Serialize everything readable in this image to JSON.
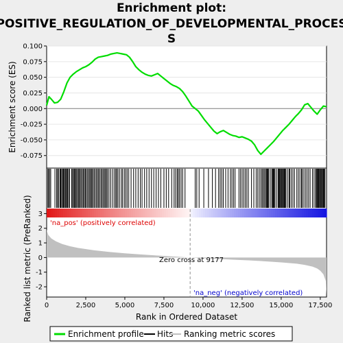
{
  "title_lines": [
    "Enrichment plot:",
    "POSITIVE_REGULATION_OF_DEVELOPMENTAL_PROCES",
    "S"
  ],
  "legend": {
    "enrichment": "Enrichment profile",
    "hits": "Hits",
    "ranking": "Ranking metric scores"
  },
  "colors": {
    "enrichment_line": "#00dd00",
    "hits": "#000000",
    "ranking_fill": "#c0c0c0",
    "positive_label": "#dd0000",
    "negative_label": "#0000cc",
    "zero_line": "#808080"
  },
  "chart_data": [
    {
      "type": "line",
      "panel": "enrichment",
      "ylabel": "Enrichment score (ES)",
      "xlim": [
        0,
        17900
      ],
      "ylim": [
        -0.095,
        0.1
      ],
      "yticks": [
        0.1,
        0.075,
        0.05,
        0.025,
        0.0,
        -0.025,
        -0.05,
        -0.075
      ],
      "ytick_labels": [
        "0.100",
        "0.075",
        "0.050",
        "0.025",
        "0.000",
        "-0.025",
        "-0.050",
        "-0.075"
      ],
      "series": [
        {
          "x": [
            0,
            150,
            300,
            500,
            700,
            900,
            1100,
            1300,
            1500,
            1700,
            1900,
            2100,
            2300,
            2500,
            2700,
            2900,
            3100,
            3300,
            3500,
            3700,
            3900,
            4100,
            4300,
            4500,
            4700,
            4900,
            5100,
            5300,
            5500,
            5700,
            5900,
            6100,
            6300,
            6500,
            6700,
            6900,
            7100,
            7300,
            7500,
            7700,
            7900,
            8100,
            8300,
            8500,
            8700,
            8900,
            9100,
            9300,
            9500,
            9700,
            9900,
            10100,
            10300,
            10500,
            10700,
            10900,
            11100,
            11300,
            11500,
            11700,
            11900,
            12100,
            12300,
            12500,
            12700,
            12900,
            13100,
            13300,
            13500,
            13700,
            13900,
            14100,
            14300,
            14500,
            14700,
            14900,
            15100,
            15300,
            15500,
            15700,
            15900,
            16100,
            16300,
            16500,
            16700,
            16900,
            17100,
            17300,
            17500,
            17700,
            17900
          ],
          "y": [
            0.005,
            0.019,
            0.015,
            0.009,
            0.01,
            0.015,
            0.027,
            0.041,
            0.05,
            0.055,
            0.059,
            0.062,
            0.065,
            0.067,
            0.07,
            0.074,
            0.079,
            0.082,
            0.083,
            0.084,
            0.085,
            0.087,
            0.088,
            0.089,
            0.088,
            0.087,
            0.086,
            0.082,
            0.075,
            0.067,
            0.062,
            0.058,
            0.055,
            0.053,
            0.052,
            0.054,
            0.056,
            0.052,
            0.048,
            0.044,
            0.04,
            0.037,
            0.035,
            0.032,
            0.027,
            0.02,
            0.012,
            0.004,
            0.0,
            -0.004,
            -0.011,
            -0.018,
            -0.024,
            -0.03,
            -0.036,
            -0.04,
            -0.037,
            -0.035,
            -0.038,
            -0.041,
            -0.043,
            -0.044,
            -0.046,
            -0.045,
            -0.047,
            -0.049,
            -0.052,
            -0.058,
            -0.067,
            -0.073,
            -0.068,
            -0.063,
            -0.058,
            -0.053,
            -0.047,
            -0.041,
            -0.035,
            -0.03,
            -0.025,
            -0.019,
            -0.013,
            -0.008,
            -0.002,
            0.006,
            0.008,
            0.002,
            -0.004,
            -0.009,
            -0.002,
            0.004,
            0.003
          ]
        }
      ]
    },
    {
      "type": "bar",
      "panel": "ranked_metric",
      "xlabel": "Rank in Ordered Dataset",
      "ylabel": "Ranked list metric (PreRanked)",
      "xlim": [
        0,
        17900
      ],
      "ylim": [
        -2.7,
        3.3
      ],
      "xticks": [
        0,
        2500,
        5000,
        7500,
        10000,
        12500,
        15000,
        17500
      ],
      "xtick_labels": [
        "0",
        "2,500",
        "5,000",
        "7,500",
        "10,000",
        "12,500",
        "15,000",
        "17,500"
      ],
      "yticks": [
        3,
        2,
        1,
        0,
        -1,
        -2
      ],
      "ytick_labels": [
        "3",
        "2",
        "1",
        "0",
        "-1",
        "-2"
      ],
      "x": [
        0,
        100,
        300,
        600,
        1000,
        1500,
        2000,
        3000,
        4000,
        5000,
        6000,
        7000,
        8000,
        9177,
        10000,
        11000,
        12000,
        13000,
        14000,
        15000,
        16000,
        16500,
        17000,
        17300,
        17500,
        17700,
        17850,
        17900
      ],
      "y": [
        1.9,
        1.55,
        1.3,
        1.1,
        0.92,
        0.77,
        0.66,
        0.5,
        0.38,
        0.29,
        0.21,
        0.14,
        0.08,
        0.0,
        -0.05,
        -0.1,
        -0.15,
        -0.2,
        -0.26,
        -0.33,
        -0.42,
        -0.5,
        -0.62,
        -0.75,
        -0.9,
        -1.15,
        -1.6,
        -2.6
      ],
      "zero_cross_rank": 9177,
      "annotations": {
        "zero_cross": "Zero cross at 9177",
        "positive": "'na_pos' (positively correlated)",
        "negative": "'na_neg' (negatively correlated)"
      }
    }
  ],
  "hits_ranks": [
    80,
    120,
    190,
    260,
    530,
    640,
    700,
    760,
    850,
    900,
    960,
    1020,
    1070,
    1110,
    1180,
    1230,
    1280,
    1340,
    1400,
    1470,
    1600,
    1660,
    1720,
    1780,
    1840,
    1890,
    1960,
    2030,
    2080,
    2150,
    2210,
    2290,
    2350,
    2420,
    2480,
    2550,
    2620,
    2700,
    2760,
    2830,
    2890,
    2950,
    3030,
    3100,
    3180,
    3260,
    3320,
    3400,
    3480,
    3550,
    3620,
    3700,
    3760,
    3830,
    3900,
    3990,
    4100,
    4220,
    4330,
    4420,
    4480,
    4560,
    4660,
    4780,
    4860,
    4970,
    5060,
    5150,
    5250,
    5400,
    5560,
    5700,
    5850,
    5990,
    6100,
    6260,
    6400,
    6550,
    6700,
    6850,
    7000,
    7150,
    7300,
    7500,
    7650,
    7800,
    8000,
    8150,
    8250,
    8350,
    8420,
    8500,
    8600,
    8700,
    8850,
    9500,
    9600,
    9750,
    10050,
    10350,
    10600,
    10800,
    11000,
    11100,
    11200,
    11300,
    11450,
    11600,
    11750,
    11850,
    11950,
    12050,
    12300,
    12400,
    12500,
    12600,
    12700,
    12800,
    12900,
    13100,
    13250,
    13400,
    13500,
    13600,
    13700,
    13780,
    13850,
    13920,
    14000,
    14050,
    14100,
    14150,
    14200,
    14300,
    14400,
    14450,
    14500,
    14550,
    14600,
    14700,
    14800,
    14850,
    14900,
    14950,
    15000,
    15050,
    15100,
    15150,
    15200,
    15250,
    15300,
    15400,
    15500,
    15550,
    15650,
    15750,
    15850,
    16000,
    16100,
    16200,
    16300,
    16350,
    16450,
    16550,
    16650,
    16750,
    16850,
    17000,
    17100,
    17200,
    17250,
    17300,
    17350,
    17400,
    17450,
    17500,
    17550,
    17600,
    17650,
    17700,
    17750,
    17800
  ]
}
